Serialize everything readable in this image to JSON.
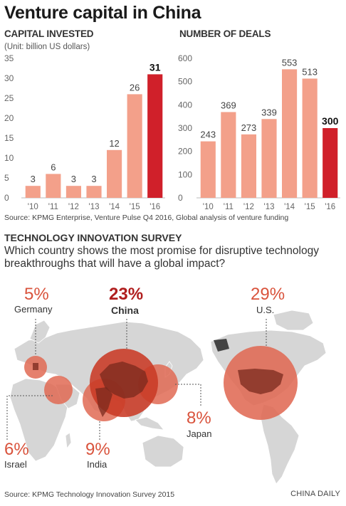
{
  "title": "Venture capital in China",
  "chart_data": [
    {
      "type": "bar",
      "title": "CAPITAL INVESTED",
      "subtitle": "(Unit: billion US dollars)",
      "categories": [
        "'10",
        "'11",
        "'12",
        "'13",
        "'14",
        "'15",
        "'16"
      ],
      "values": [
        3,
        6,
        3,
        3,
        12,
        26,
        31
      ],
      "ylim": [
        0,
        35
      ],
      "yticks": [
        "0",
        "5",
        "10",
        "15",
        "20",
        "25",
        "30",
        "35"
      ],
      "highlight_index": 6
    },
    {
      "type": "bar",
      "title": "NUMBER OF DEALS",
      "categories": [
        "'10",
        "'11",
        "'12",
        "'13",
        "'14",
        "'15",
        "'16"
      ],
      "values": [
        243,
        369,
        273,
        339,
        553,
        513,
        300
      ],
      "ylim": [
        0,
        600
      ],
      "yticks": [
        "0",
        "100",
        "200",
        "300",
        "400",
        "500",
        "600"
      ],
      "highlight_index": 6
    }
  ],
  "source_1": "Source: KPMG Enterprise, Venture Pulse Q4 2016, Global analysis of venture funding",
  "survey": {
    "heading": "TECHNOLOGY INNOVATION SURVEY",
    "question": "Which country shows the most promise for disruptive technology breakthroughs that will have a global impact?",
    "countries": [
      {
        "name": "Germany",
        "percent": "5%",
        "value": 5
      },
      {
        "name": "China",
        "percent": "23%",
        "value": 23
      },
      {
        "name": "U.S.",
        "percent": "29%",
        "value": 29
      },
      {
        "name": "Israel",
        "percent": "6%",
        "value": 6
      },
      {
        "name": "India",
        "percent": "9%",
        "value": 9
      },
      {
        "name": "Japan",
        "percent": "8%",
        "value": 8
      }
    ]
  },
  "source_2": "Source: KPMG Technology Innovation Survey 2015",
  "credit": "CHINA DAILY",
  "colors": {
    "bar": "#f3a08a",
    "bar_highlight": "#d0202a",
    "axis_text": "#666666",
    "bubble": "#e06a54",
    "bubble_china": "#c93a25",
    "land": "#d5d5d5",
    "land_dark": "#7a2a1e"
  }
}
